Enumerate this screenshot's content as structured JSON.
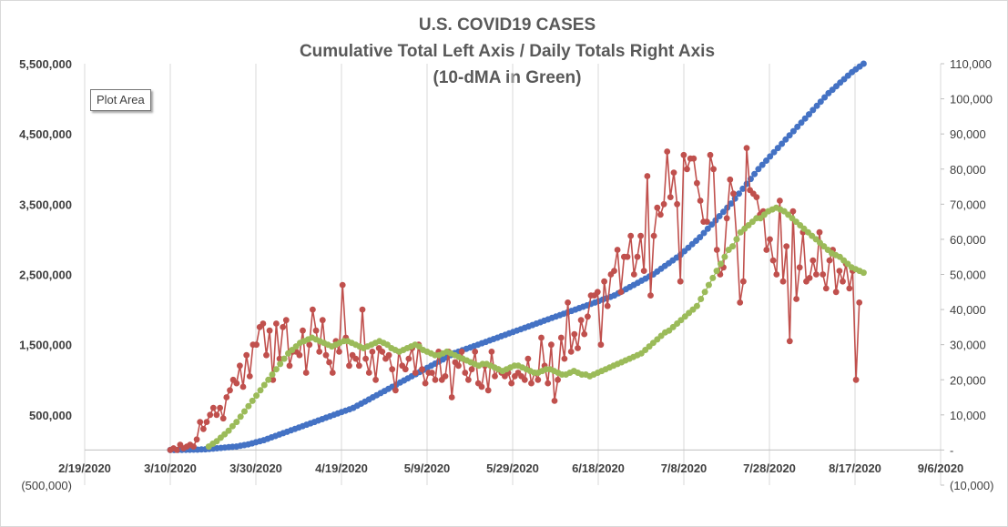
{
  "chart_data": {
    "type": "line",
    "title_lines": [
      "U.S. COVID19 CASES",
      "Cumulative Total Left Axis / Daily Totals Right Axis",
      "(10-dMA in Green)"
    ],
    "x_axis": {
      "type": "date",
      "min": "2020-02-19",
      "max": "2020-09-06",
      "tick_labels": [
        "2/19/2020",
        "3/10/2020",
        "3/30/2020",
        "4/19/2020",
        "5/9/2020",
        "5/29/2020",
        "6/18/2020",
        "7/8/2020",
        "7/28/2020",
        "8/17/2020",
        "9/6/2020"
      ]
    },
    "y_left": {
      "min": -500000,
      "max": 5500000,
      "tick_values": [
        -500000,
        500000,
        1500000,
        2500000,
        3500000,
        4500000,
        5500000
      ],
      "tick_labels": [
        "(500,000)",
        "500,000",
        "1,500,000",
        "2,500,000",
        "3,500,000",
        "4,500,000",
        "5,500,000"
      ]
    },
    "y_right": {
      "min": -10000,
      "max": 110000,
      "tick_values": [
        -10000,
        0,
        10000,
        20000,
        30000,
        40000,
        50000,
        60000,
        70000,
        80000,
        90000,
        100000,
        110000
      ],
      "tick_labels": [
        "(10,000)",
        "-",
        "10,000",
        "20,000",
        "30,000",
        "40,000",
        "50,000",
        "60,000",
        "70,000",
        "80,000",
        "90,000",
        "100,000",
        "110,000"
      ]
    },
    "grid": "vertical",
    "series": [
      {
        "axis": "left",
        "color": "#4472c4",
        "x_start": "2020-03-10",
        "x_end": "2020-08-19",
        "values": [
          0,
          0,
          1000,
          2000,
          3000,
          4000,
          5000,
          6000,
          8000,
          10000,
          15000,
          20000,
          25000,
          30000,
          35000,
          40000,
          45000,
          50000,
          60000,
          70000,
          80000,
          95000,
          110000,
          125000,
          140000,
          160000,
          180000,
          200000,
          220000,
          240000,
          260000,
          280000,
          300000,
          320000,
          340000,
          360000,
          380000,
          400000,
          420000,
          440000,
          460000,
          480000,
          500000,
          520000,
          540000,
          560000,
          580000,
          600000,
          630000,
          660000,
          690000,
          720000,
          750000,
          780000,
          810000,
          840000,
          870000,
          900000,
          930000,
          960000,
          990000,
          1020000,
          1050000,
          1080000,
          1110000,
          1140000,
          1170000,
          1200000,
          1230000,
          1260000,
          1290000,
          1320000,
          1350000,
          1380000,
          1400000,
          1420000,
          1440000,
          1460000,
          1480000,
          1500000,
          1520000,
          1540000,
          1560000,
          1580000,
          1600000,
          1620000,
          1640000,
          1660000,
          1680000,
          1700000,
          1720000,
          1740000,
          1760000,
          1780000,
          1800000,
          1820000,
          1840000,
          1860000,
          1880000,
          1900000,
          1920000,
          1940000,
          1960000,
          1980000,
          2000000,
          2020000,
          2040000,
          2060000,
          2080000,
          2100000,
          2120000,
          2140000,
          2160000,
          2180000,
          2200000,
          2230000,
          2260000,
          2290000,
          2320000,
          2350000,
          2380000,
          2410000,
          2440000,
          2470000,
          2500000,
          2540000,
          2580000,
          2620000,
          2660000,
          2700000,
          2740000,
          2780000,
          2830000,
          2880000,
          2930000,
          2980000,
          3030000,
          3090000,
          3150000,
          3210000,
          3270000,
          3330000,
          3390000,
          3450000,
          3510000,
          3580000,
          3650000,
          3720000,
          3790000,
          3860000,
          3930000,
          4000000,
          4060000,
          4120000,
          4180000,
          4240000,
          4300000,
          4360000,
          4420000,
          4480000,
          4540000,
          4600000,
          4660000,
          4720000,
          4780000,
          4840000,
          4900000,
          4960000,
          5020000,
          5080000,
          5130000,
          5180000,
          5230000,
          5280000,
          5330000,
          5380000,
          5420000,
          5460000,
          5500000
        ]
      },
      {
        "axis": "right",
        "color": "#c0504d",
        "x_start": "2020-03-10",
        "x_end": "2020-08-18",
        "values": [
          0,
          500,
          0,
          1500,
          500,
          1000,
          1500,
          1000,
          3000,
          8000,
          6000,
          8000,
          10000,
          12000,
          10000,
          12000,
          9000,
          15000,
          17000,
          20000,
          19000,
          24000,
          18000,
          27000,
          21000,
          30000,
          30000,
          35000,
          36000,
          27000,
          34000,
          20000,
          36000,
          26000,
          35000,
          37000,
          24000,
          28000,
          28000,
          27000,
          34000,
          22000,
          30000,
          40000,
          34000,
          28000,
          37000,
          27000,
          25000,
          22000,
          31000,
          28000,
          47000,
          32000,
          24000,
          27000,
          26000,
          24000,
          40000,
          26000,
          22000,
          28000,
          20000,
          29000,
          28000,
          26000,
          27000,
          23000,
          17000,
          28000,
          24000,
          23000,
          26000,
          29000,
          22000,
          30000,
          23000,
          19000,
          22000,
          22000,
          20000,
          28000,
          20000,
          21000,
          28000,
          15000,
          25000,
          24000,
          28000,
          22000,
          20000,
          23000,
          28000,
          19000,
          18000,
          24000,
          17000,
          28000,
          21000,
          23000,
          22000,
          21000,
          22000,
          19000,
          21000,
          22000,
          21000,
          20000,
          26000,
          19000,
          22000,
          20000,
          32000,
          24000,
          19000,
          30000,
          14000,
          20000,
          32000,
          26000,
          42000,
          28000,
          33000,
          29000,
          37000,
          33000,
          38000,
          44000,
          44000,
          45000,
          30000,
          48000,
          41000,
          50000,
          51000,
          57000,
          45000,
          55000,
          55000,
          61000,
          50000,
          55000,
          61000,
          51000,
          78000,
          44000,
          61000,
          69000,
          67000,
          70000,
          85000,
          72000,
          79000,
          70000,
          48000,
          84000,
          80000,
          83000,
          83000,
          76000,
          71000,
          65000,
          65000,
          84000,
          80000,
          57000,
          50000,
          52000,
          66000,
          77000,
          73000,
          60000,
          42000,
          48000,
          86000,
          74000,
          73000,
          72000,
          67000,
          68000,
          57000,
          60000,
          54000,
          50000,
          71000,
          48000,
          58000,
          31000,
          68000,
          43000,
          52000,
          62000,
          48000,
          49000,
          54000,
          50000,
          62000,
          50000,
          46000,
          54000,
          57000,
          45000,
          51000,
          48000,
          53000,
          46000,
          51000,
          20000,
          42000
        ]
      },
      {
        "axis": "right",
        "color": "#9bbb59",
        "x_start": "2020-03-19",
        "x_end": "2020-08-19",
        "values": [
          1000,
          1800,
          2500,
          3500,
          4500,
          5500,
          6800,
          8000,
          9500,
          11000,
          12500,
          14000,
          15500,
          17000,
          18500,
          20000,
          21500,
          23000,
          24500,
          26000,
          27500,
          28500,
          29500,
          30500,
          31000,
          31500,
          32000,
          31500,
          31000,
          30500,
          30000,
          29500,
          30000,
          30500,
          31000,
          31000,
          30500,
          30000,
          29500,
          29000,
          29500,
          30000,
          30500,
          31000,
          30500,
          30000,
          29000,
          28500,
          28000,
          28500,
          29000,
          29500,
          30000,
          29500,
          28500,
          28000,
          27500,
          27000,
          27000,
          27500,
          28000,
          27500,
          27000,
          26500,
          26000,
          25500,
          25000,
          24500,
          24000,
          24500,
          24500,
          24000,
          23500,
          23000,
          22500,
          23000,
          23500,
          24000,
          24000,
          23500,
          23000,
          22500,
          22000,
          22000,
          22500,
          23000,
          23000,
          22500,
          22000,
          21500,
          21500,
          22000,
          22500,
          22000,
          21500,
          21500,
          21000,
          21500,
          22000,
          22500,
          23000,
          23500,
          24000,
          24500,
          25000,
          25500,
          26000,
          26500,
          27000,
          27500,
          28500,
          29500,
          30500,
          31500,
          32500,
          33500,
          34000,
          35000,
          36000,
          37000,
          38000,
          39000,
          40000,
          41000,
          43000,
          45000,
          47000,
          49000,
          51000,
          53000,
          55000,
          57000,
          58000,
          60000,
          62000,
          63000,
          64000,
          65000,
          66000,
          66000,
          67000,
          68000,
          68500,
          69000,
          68500,
          68000,
          67000,
          66000,
          65000,
          64000,
          63000,
          62000,
          61000,
          60000,
          59000,
          58000,
          57000,
          56000,
          55500,
          55000,
          54000,
          53000,
          52000,
          51500,
          51000,
          50500
        ]
      }
    ],
    "annotation": "Plot Area"
  }
}
